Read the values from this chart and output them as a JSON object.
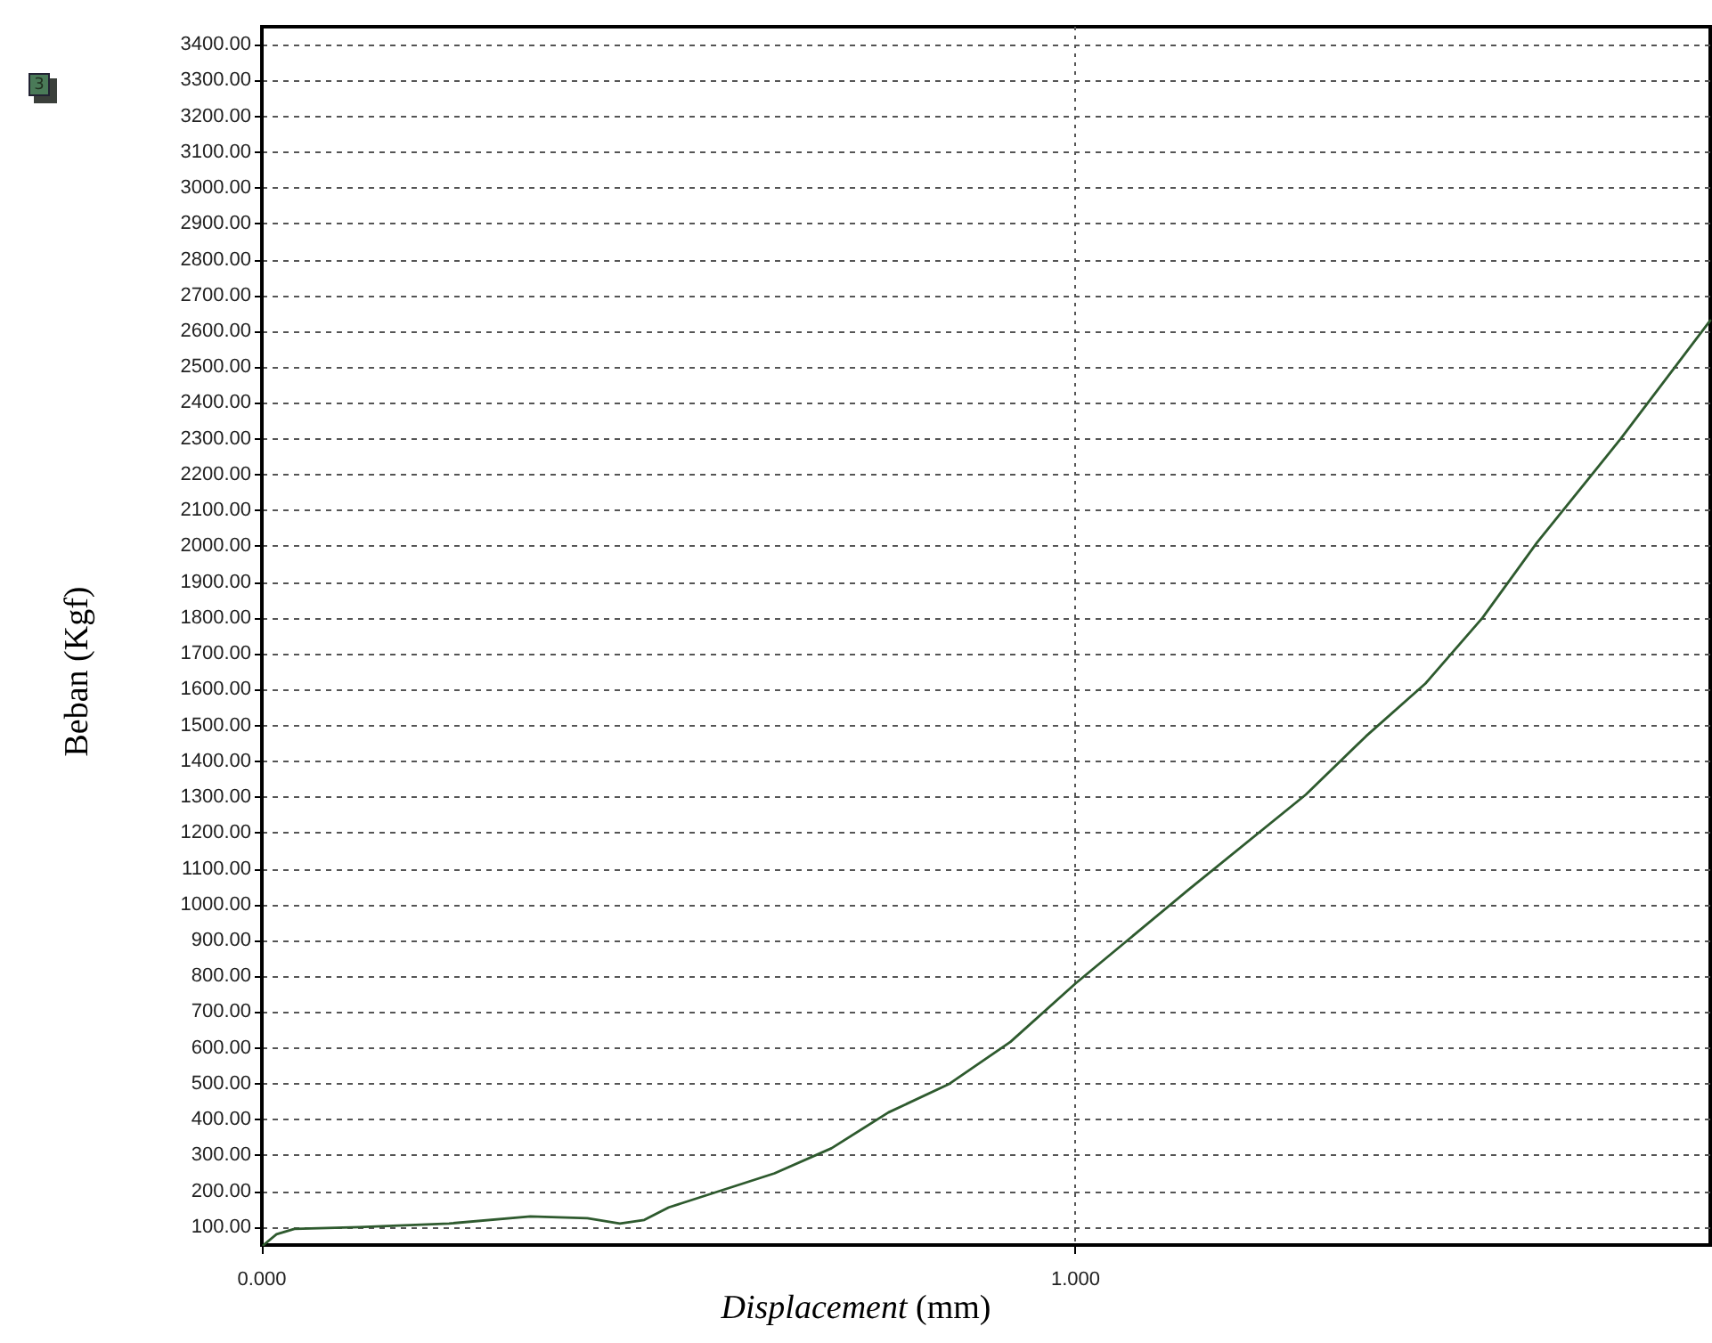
{
  "chart_data": {
    "type": "line",
    "xlabel": "Displacement (mm)",
    "ylabel": "Beban (Kgf)",
    "annotations": [
      "3"
    ],
    "x": [
      0.002,
      0.018,
      0.04,
      0.12,
      0.23,
      0.33,
      0.4,
      0.44,
      0.47,
      0.5,
      0.63,
      0.7,
      0.77,
      0.845,
      0.92,
      1.0,
      1.138,
      1.283,
      1.357,
      1.43,
      1.5,
      1.567,
      1.67,
      1.78
    ],
    "series": [
      {
        "color": "#2e5a2e",
        "values": [
          50,
          80,
          95,
          100,
          110,
          130,
          125,
          110,
          120,
          155,
          250,
          320,
          420,
          500,
          617,
          780,
          1040,
          1307,
          1470,
          1617,
          1800,
          2010,
          2300,
          2630
        ]
      }
    ],
    "xlim": [
      0,
      1.78
    ],
    "ylim": [
      50,
      3450
    ],
    "xticks": [
      {
        "value": 0,
        "label": "0.000"
      },
      {
        "value": 1,
        "label": "1.000"
      }
    ],
    "yticks": [
      {
        "value": 100,
        "label": "100.00"
      },
      {
        "value": 200,
        "label": "200.00"
      },
      {
        "value": 300,
        "label": "300.00"
      },
      {
        "value": 400,
        "label": "400.00"
      },
      {
        "value": 500,
        "label": "500.00"
      },
      {
        "value": 600,
        "label": "600.00"
      },
      {
        "value": 700,
        "label": "700.00"
      },
      {
        "value": 800,
        "label": "800.00"
      },
      {
        "value": 900,
        "label": "900.00"
      },
      {
        "value": 1000,
        "label": "1000.00"
      },
      {
        "value": 1100,
        "label": "1100.00"
      },
      {
        "value": 1200,
        "label": "1200.00"
      },
      {
        "value": 1300,
        "label": "1300.00"
      },
      {
        "value": 1400,
        "label": "1400.00"
      },
      {
        "value": 1500,
        "label": "1500.00"
      },
      {
        "value": 1600,
        "label": "1600.00"
      },
      {
        "value": 1700,
        "label": "1700.00"
      },
      {
        "value": 1800,
        "label": "1800.00"
      },
      {
        "value": 1900,
        "label": "1900.00"
      },
      {
        "value": 2000,
        "label": "2000.00"
      },
      {
        "value": 2100,
        "label": "2100.00"
      },
      {
        "value": 2200,
        "label": "2200.00"
      },
      {
        "value": 2300,
        "label": "2300.00"
      },
      {
        "value": 2400,
        "label": "2400.00"
      },
      {
        "value": 2500,
        "label": "2500.00"
      },
      {
        "value": 2600,
        "label": "2600.00"
      },
      {
        "value": 2700,
        "label": "2700.00"
      },
      {
        "value": 2800,
        "label": "2800.00"
      },
      {
        "value": 2900,
        "label": "2900.00"
      },
      {
        "value": 3000,
        "label": "3000.00"
      },
      {
        "value": 3100,
        "label": "3100.00"
      },
      {
        "value": 3200,
        "label": "3200.00"
      },
      {
        "value": 3300,
        "label": "3300.00"
      },
      {
        "value": 3400,
        "label": "3400.00"
      }
    ],
    "grid": true,
    "marker": "none",
    "line_style": "solid"
  }
}
